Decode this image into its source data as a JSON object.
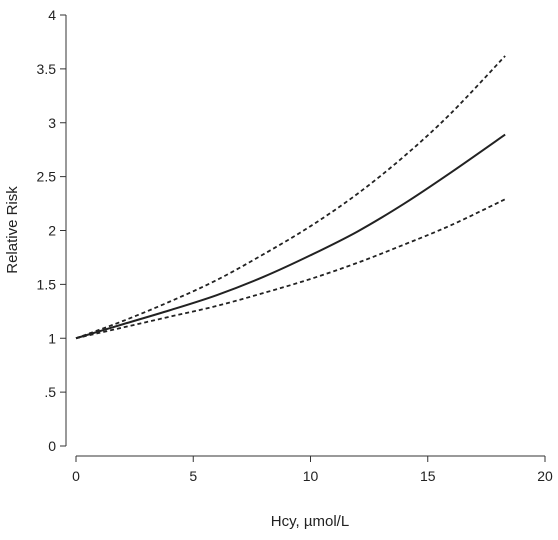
{
  "chart_data": {
    "type": "line",
    "title": "",
    "xlabel": "Hcy, µmol/L",
    "ylabel": "Relative Risk",
    "xlim": [
      0,
      20
    ],
    "ylim": [
      0,
      4
    ],
    "x_ticks": [
      0,
      5,
      10,
      15,
      20
    ],
    "x_tick_labels": [
      "0",
      "5",
      "10",
      "15",
      "20"
    ],
    "y_ticks": [
      0,
      0.5,
      1,
      1.5,
      2,
      2.5,
      3,
      3.5,
      4
    ],
    "y_tick_labels": [
      "0",
      ".5",
      "1",
      "1.5",
      "2",
      "2.5",
      "3",
      "3.5",
      "4"
    ],
    "grid": false,
    "legend": "none",
    "series": [
      {
        "style": "solid",
        "color": "#222222",
        "x": [
          0,
          2,
          4,
          6,
          8,
          10,
          12,
          14,
          16,
          18.3
        ],
        "y": [
          1.0,
          1.13,
          1.26,
          1.4,
          1.57,
          1.77,
          1.99,
          2.25,
          2.54,
          2.89
        ]
      },
      {
        "style": "dashed",
        "color": "#222222",
        "x": [
          0,
          2,
          4,
          6,
          8,
          10,
          12,
          14,
          16,
          18.3
        ],
        "y": [
          1.0,
          1.16,
          1.34,
          1.54,
          1.78,
          2.04,
          2.34,
          2.69,
          3.09,
          3.62
        ]
      },
      {
        "style": "dashed",
        "color": "#222222",
        "x": [
          0,
          2,
          4,
          6,
          8,
          10,
          12,
          14,
          16,
          18.3
        ],
        "y": [
          1.0,
          1.1,
          1.2,
          1.3,
          1.42,
          1.55,
          1.7,
          1.87,
          2.05,
          2.29
        ]
      }
    ]
  }
}
